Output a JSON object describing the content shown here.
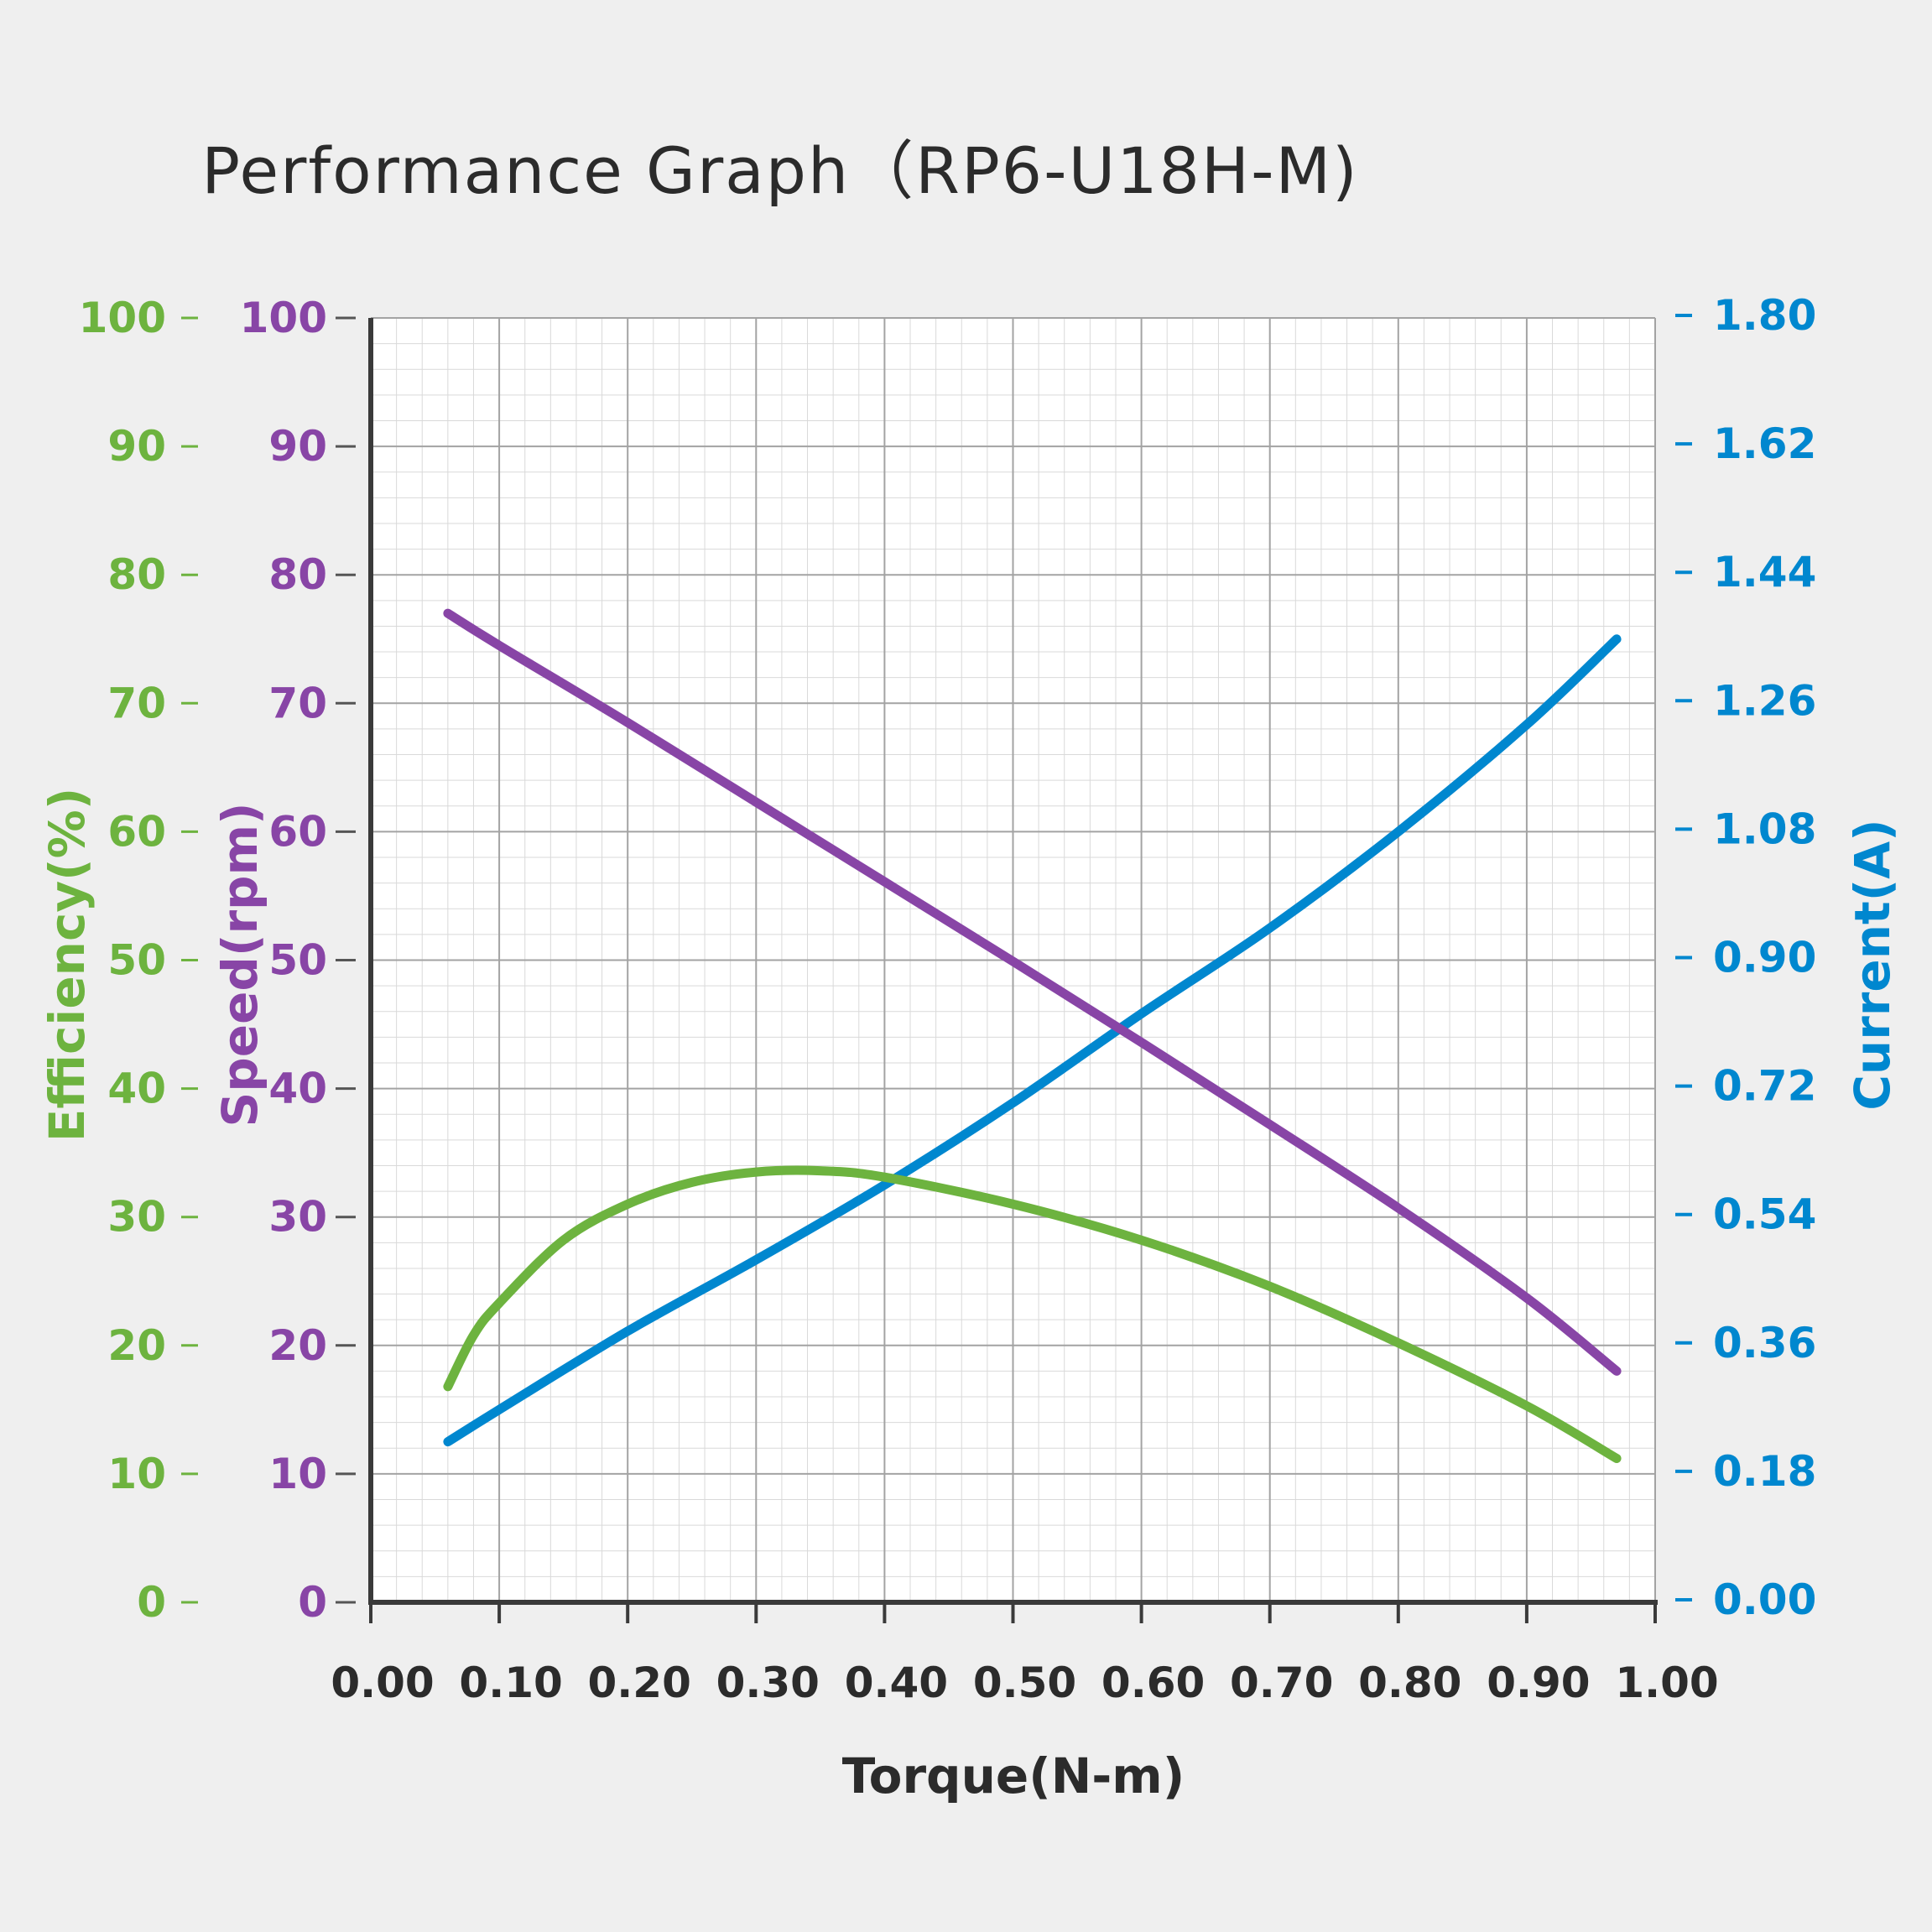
{
  "chart_data": {
    "type": "line",
    "title": "Performance Graph（RP6-U18H-M)",
    "xlabel": "Torque(N-m)",
    "xlim": [
      0,
      1.0
    ],
    "x_ticks": [
      "0.00",
      "0.10",
      "0.20",
      "0.30",
      "0.40",
      "0.50",
      "0.60",
      "0.70",
      "0.80",
      "0.90",
      "1.00"
    ],
    "axes": {
      "efficiency": {
        "label": "Efficiency(%)",
        "range": [
          0,
          100
        ],
        "ticks": [
          "0",
          "10",
          "20",
          "30",
          "40",
          "50",
          "60",
          "70",
          "80",
          "90",
          "100"
        ],
        "color": "#6db33f"
      },
      "speed": {
        "label": "Speed(rpm)",
        "range": [
          0,
          100
        ],
        "ticks": [
          "0",
          "10",
          "20",
          "30",
          "40",
          "50",
          "60",
          "70",
          "80",
          "90",
          "100"
        ],
        "color": "#8845a6"
      },
      "current": {
        "label": "Current(A)",
        "range": [
          0,
          1.8
        ],
        "ticks": [
          "0.00",
          "0.18",
          "0.36",
          "0.54",
          "0.72",
          "0.90",
          "1.08",
          "1.26",
          "1.44",
          "1.62",
          "1.80"
        ],
        "color": "#0087cf"
      }
    },
    "series": [
      {
        "name": "Speed",
        "axis": "speed",
        "color": "#8845a6",
        "x": [
          0.06,
          0.1,
          0.2,
          0.3,
          0.4,
          0.5,
          0.6,
          0.7,
          0.8,
          0.9,
          0.97
        ],
        "y": [
          77,
          74.5,
          68.5,
          62.3,
          56.1,
          49.9,
          43.6,
          37.2,
          30.7,
          23.7,
          18
        ]
      },
      {
        "name": "Current",
        "axis": "current",
        "color": "#0087cf",
        "x": [
          0.06,
          0.1,
          0.2,
          0.3,
          0.4,
          0.5,
          0.6,
          0.7,
          0.8,
          0.9,
          0.97
        ],
        "y": [
          0.225,
          0.27,
          0.38,
          0.48,
          0.585,
          0.7,
          0.825,
          0.945,
          1.08,
          1.23,
          1.35
        ]
      },
      {
        "name": "Efficiency",
        "axis": "efficiency",
        "color": "#6db33f",
        "x": [
          0.06,
          0.08,
          0.1,
          0.15,
          0.2,
          0.25,
          0.3,
          0.35,
          0.4,
          0.5,
          0.6,
          0.7,
          0.8,
          0.9,
          0.97
        ],
        "y": [
          16.8,
          20.8,
          23.3,
          28.2,
          31.0,
          32.7,
          33.5,
          33.6,
          33.1,
          31.0,
          28.2,
          24.6,
          20.2,
          15.3,
          11.2
        ]
      }
    ],
    "grid": true
  }
}
